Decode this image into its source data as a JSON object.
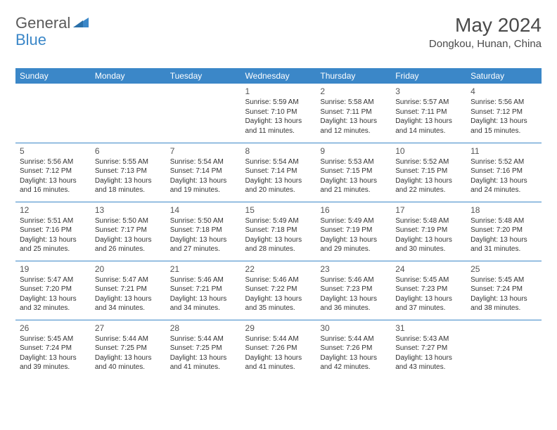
{
  "brand": {
    "name1": "General",
    "name2": "Blue"
  },
  "title": "May 2024",
  "location": "Dongkou, Hunan, China",
  "colors": {
    "header_bg": "#3b87c8",
    "header_text": "#ffffff",
    "text": "#333333",
    "title_text": "#4a4a4a",
    "rule": "#3b87c8",
    "background": "#ffffff"
  },
  "day_headers": [
    "Sunday",
    "Monday",
    "Tuesday",
    "Wednesday",
    "Thursday",
    "Friday",
    "Saturday"
  ],
  "weeks": [
    [
      null,
      null,
      null,
      {
        "n": "1",
        "sr": "Sunrise: 5:59 AM",
        "ss": "Sunset: 7:10 PM",
        "d1": "Daylight: 13 hours",
        "d2": "and 11 minutes."
      },
      {
        "n": "2",
        "sr": "Sunrise: 5:58 AM",
        "ss": "Sunset: 7:11 PM",
        "d1": "Daylight: 13 hours",
        "d2": "and 12 minutes."
      },
      {
        "n": "3",
        "sr": "Sunrise: 5:57 AM",
        "ss": "Sunset: 7:11 PM",
        "d1": "Daylight: 13 hours",
        "d2": "and 14 minutes."
      },
      {
        "n": "4",
        "sr": "Sunrise: 5:56 AM",
        "ss": "Sunset: 7:12 PM",
        "d1": "Daylight: 13 hours",
        "d2": "and 15 minutes."
      }
    ],
    [
      {
        "n": "5",
        "sr": "Sunrise: 5:56 AM",
        "ss": "Sunset: 7:12 PM",
        "d1": "Daylight: 13 hours",
        "d2": "and 16 minutes."
      },
      {
        "n": "6",
        "sr": "Sunrise: 5:55 AM",
        "ss": "Sunset: 7:13 PM",
        "d1": "Daylight: 13 hours",
        "d2": "and 18 minutes."
      },
      {
        "n": "7",
        "sr": "Sunrise: 5:54 AM",
        "ss": "Sunset: 7:14 PM",
        "d1": "Daylight: 13 hours",
        "d2": "and 19 minutes."
      },
      {
        "n": "8",
        "sr": "Sunrise: 5:54 AM",
        "ss": "Sunset: 7:14 PM",
        "d1": "Daylight: 13 hours",
        "d2": "and 20 minutes."
      },
      {
        "n": "9",
        "sr": "Sunrise: 5:53 AM",
        "ss": "Sunset: 7:15 PM",
        "d1": "Daylight: 13 hours",
        "d2": "and 21 minutes."
      },
      {
        "n": "10",
        "sr": "Sunrise: 5:52 AM",
        "ss": "Sunset: 7:15 PM",
        "d1": "Daylight: 13 hours",
        "d2": "and 22 minutes."
      },
      {
        "n": "11",
        "sr": "Sunrise: 5:52 AM",
        "ss": "Sunset: 7:16 PM",
        "d1": "Daylight: 13 hours",
        "d2": "and 24 minutes."
      }
    ],
    [
      {
        "n": "12",
        "sr": "Sunrise: 5:51 AM",
        "ss": "Sunset: 7:16 PM",
        "d1": "Daylight: 13 hours",
        "d2": "and 25 minutes."
      },
      {
        "n": "13",
        "sr": "Sunrise: 5:50 AM",
        "ss": "Sunset: 7:17 PM",
        "d1": "Daylight: 13 hours",
        "d2": "and 26 minutes."
      },
      {
        "n": "14",
        "sr": "Sunrise: 5:50 AM",
        "ss": "Sunset: 7:18 PM",
        "d1": "Daylight: 13 hours",
        "d2": "and 27 minutes."
      },
      {
        "n": "15",
        "sr": "Sunrise: 5:49 AM",
        "ss": "Sunset: 7:18 PM",
        "d1": "Daylight: 13 hours",
        "d2": "and 28 minutes."
      },
      {
        "n": "16",
        "sr": "Sunrise: 5:49 AM",
        "ss": "Sunset: 7:19 PM",
        "d1": "Daylight: 13 hours",
        "d2": "and 29 minutes."
      },
      {
        "n": "17",
        "sr": "Sunrise: 5:48 AM",
        "ss": "Sunset: 7:19 PM",
        "d1": "Daylight: 13 hours",
        "d2": "and 30 minutes."
      },
      {
        "n": "18",
        "sr": "Sunrise: 5:48 AM",
        "ss": "Sunset: 7:20 PM",
        "d1": "Daylight: 13 hours",
        "d2": "and 31 minutes."
      }
    ],
    [
      {
        "n": "19",
        "sr": "Sunrise: 5:47 AM",
        "ss": "Sunset: 7:20 PM",
        "d1": "Daylight: 13 hours",
        "d2": "and 32 minutes."
      },
      {
        "n": "20",
        "sr": "Sunrise: 5:47 AM",
        "ss": "Sunset: 7:21 PM",
        "d1": "Daylight: 13 hours",
        "d2": "and 34 minutes."
      },
      {
        "n": "21",
        "sr": "Sunrise: 5:46 AM",
        "ss": "Sunset: 7:21 PM",
        "d1": "Daylight: 13 hours",
        "d2": "and 34 minutes."
      },
      {
        "n": "22",
        "sr": "Sunrise: 5:46 AM",
        "ss": "Sunset: 7:22 PM",
        "d1": "Daylight: 13 hours",
        "d2": "and 35 minutes."
      },
      {
        "n": "23",
        "sr": "Sunrise: 5:46 AM",
        "ss": "Sunset: 7:23 PM",
        "d1": "Daylight: 13 hours",
        "d2": "and 36 minutes."
      },
      {
        "n": "24",
        "sr": "Sunrise: 5:45 AM",
        "ss": "Sunset: 7:23 PM",
        "d1": "Daylight: 13 hours",
        "d2": "and 37 minutes."
      },
      {
        "n": "25",
        "sr": "Sunrise: 5:45 AM",
        "ss": "Sunset: 7:24 PM",
        "d1": "Daylight: 13 hours",
        "d2": "and 38 minutes."
      }
    ],
    [
      {
        "n": "26",
        "sr": "Sunrise: 5:45 AM",
        "ss": "Sunset: 7:24 PM",
        "d1": "Daylight: 13 hours",
        "d2": "and 39 minutes."
      },
      {
        "n": "27",
        "sr": "Sunrise: 5:44 AM",
        "ss": "Sunset: 7:25 PM",
        "d1": "Daylight: 13 hours",
        "d2": "and 40 minutes."
      },
      {
        "n": "28",
        "sr": "Sunrise: 5:44 AM",
        "ss": "Sunset: 7:25 PM",
        "d1": "Daylight: 13 hours",
        "d2": "and 41 minutes."
      },
      {
        "n": "29",
        "sr": "Sunrise: 5:44 AM",
        "ss": "Sunset: 7:26 PM",
        "d1": "Daylight: 13 hours",
        "d2": "and 41 minutes."
      },
      {
        "n": "30",
        "sr": "Sunrise: 5:44 AM",
        "ss": "Sunset: 7:26 PM",
        "d1": "Daylight: 13 hours",
        "d2": "and 42 minutes."
      },
      {
        "n": "31",
        "sr": "Sunrise: 5:43 AM",
        "ss": "Sunset: 7:27 PM",
        "d1": "Daylight: 13 hours",
        "d2": "and 43 minutes."
      },
      null
    ]
  ]
}
